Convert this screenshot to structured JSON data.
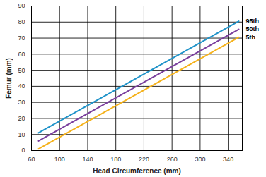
{
  "chart_data": {
    "type": "line",
    "x_label": "Head Circumference (mm)",
    "y_label": "Femur (mm)",
    "x": [
      70,
      355
    ],
    "series": [
      {
        "name": "95th",
        "color": "#1f93c9",
        "values": [
          11,
          80.5
        ]
      },
      {
        "name": "50th",
        "color": "#7a3e9d",
        "values": [
          6,
          75.5
        ]
      },
      {
        "name": "5th",
        "color": "#f5b21b",
        "values": [
          1,
          70.5
        ]
      }
    ],
    "xlim": [
      60,
      360
    ],
    "xticks": [
      60,
      100,
      140,
      180,
      220,
      260,
      300,
      340
    ],
    "ylim": [
      0,
      90
    ],
    "yticks": [
      0,
      10,
      20,
      30,
      40,
      50,
      60,
      70,
      80,
      90
    ],
    "grid": true
  }
}
